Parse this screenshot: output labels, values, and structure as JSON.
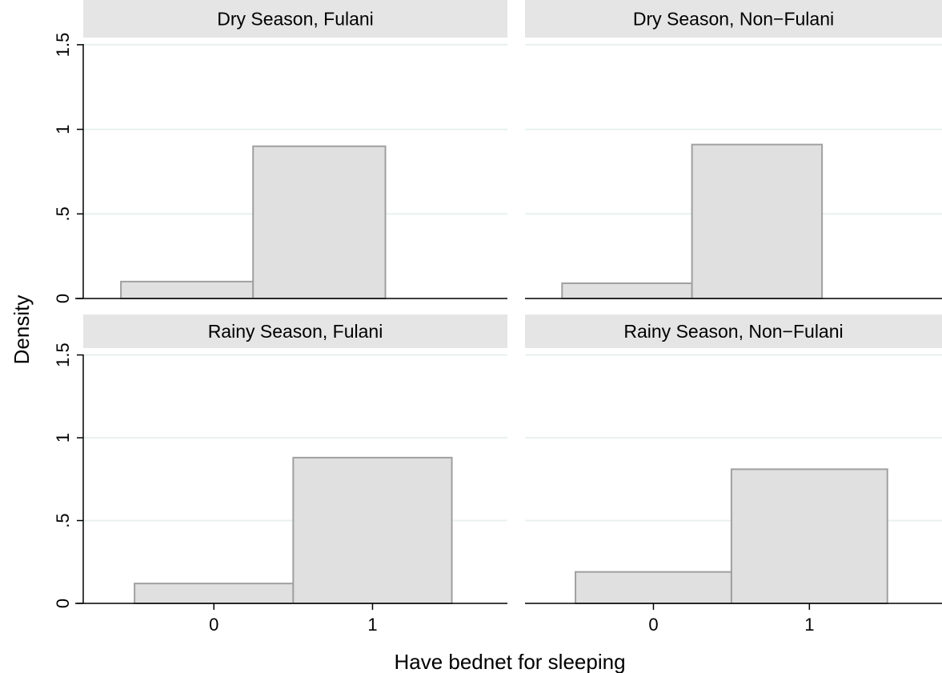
{
  "chart_data": {
    "type": "bar",
    "ylabel": "Density",
    "xlabel": "Have bednet for sleeping",
    "ylim": [
      0,
      1.5
    ],
    "yticks": [
      0,
      0.5,
      1,
      1.5
    ],
    "ytick_labels": [
      "0",
      ".5",
      "1",
      "1.5"
    ],
    "grid": true,
    "colors": {
      "bar_fill": "#e0e0e0",
      "bar_edge": "#a0a0a0",
      "strip": "#e5e5e5",
      "grid": "#e8f0f0"
    },
    "panels": [
      {
        "title": "Dry Season, Fulani",
        "bars": [
          {
            "category": "0",
            "value": 0.1
          },
          {
            "category": "1",
            "value": 0.9
          }
        ]
      },
      {
        "title": "Dry Season, Non−Fulani",
        "bars": [
          {
            "category": "0",
            "value": 0.09
          },
          {
            "category": "1",
            "value": 0.91
          }
        ]
      },
      {
        "title": "Rainy Season, Fulani",
        "bars": [
          {
            "category": "0",
            "value": 0.12
          },
          {
            "category": "1",
            "value": 0.88
          }
        ],
        "xtick_labels": [
          "0",
          "1"
        ]
      },
      {
        "title": "Rainy Season, Non−Fulani",
        "bars": [
          {
            "category": "0",
            "value": 0.19
          },
          {
            "category": "1",
            "value": 0.81
          }
        ],
        "xtick_labels": [
          "0",
          "1"
        ]
      }
    ]
  }
}
